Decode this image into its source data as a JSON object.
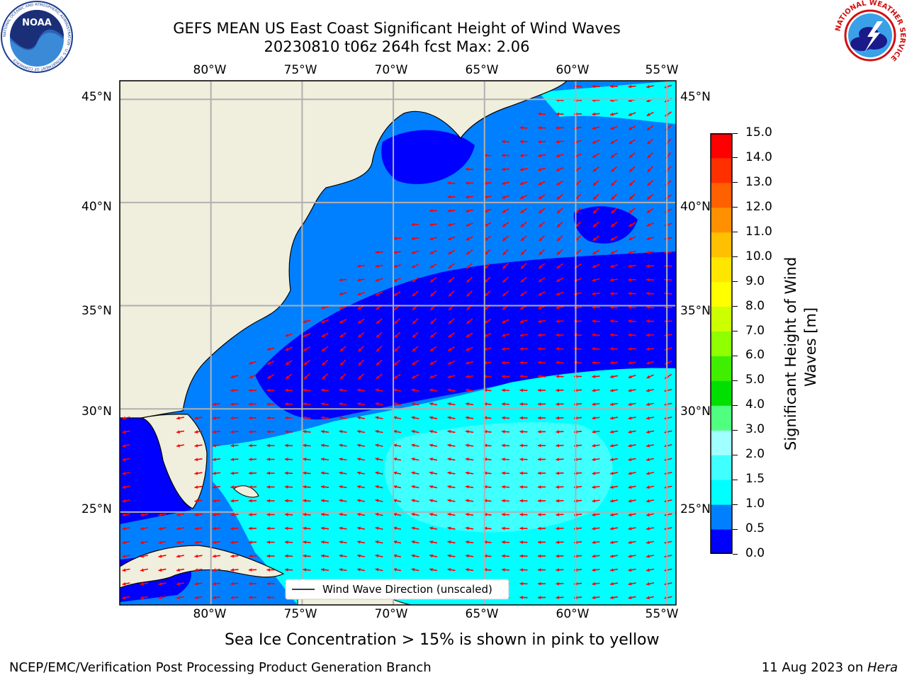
{
  "header": {
    "title_line1": "GEFS MEAN US East Coast Significant Height of Wind Waves",
    "title_line2": "20230810 t06z 264h fcst   Max: 2.06"
  },
  "logos": {
    "noaa": {
      "text": "NOAA",
      "ring_text": "NATIONAL OCEANIC AND ATMOSPHERIC ADMINISTRATION · U.S. DEPARTMENT OF COMMERCE"
    },
    "nws": {
      "ring_text": "NATIONAL WEATHER SERVICE"
    }
  },
  "map": {
    "lon_labels": [
      "80°W",
      "75°W",
      "70°W",
      "65°W",
      "60°W",
      "55°W"
    ],
    "lat_labels": [
      "45°N",
      "40°N",
      "35°N",
      "30°N",
      "25°N"
    ],
    "lon_range": [
      -85,
      -54.5
    ],
    "lat_range": [
      20.5,
      45.9
    ],
    "grid": true,
    "legend": "Wind Wave Direction (unscaled)"
  },
  "colorbar": {
    "title": "Significant Height of Wind Waves [m]",
    "title_line1": "Significant Height of Wind",
    "title_line2": "Waves [m]",
    "ticks": [
      "0.0",
      "0.5",
      "1.0",
      "1.5",
      "2.0",
      "3.0",
      "4.0",
      "5.0",
      "6.0",
      "7.0",
      "8.0",
      "9.0",
      "10.0",
      "11.0",
      "12.0",
      "13.0",
      "14.0",
      "15.0"
    ],
    "colors": [
      "#0000ff",
      "#0080ff",
      "#00ffff",
      "#40ffff",
      "#a0ffff",
      "#50ff80",
      "#00e000",
      "#40ee00",
      "#90ff00",
      "#ccff00",
      "#ffff00",
      "#ffe600",
      "#ffc000",
      "#ff9000",
      "#ff6000",
      "#ff3000",
      "#ff0000"
    ]
  },
  "notes": {
    "ice": "Sea Ice Concentration > 15% is shown in pink to yellow"
  },
  "footer": {
    "left": "NCEP/EMC/Verification Post Processing Product Generation Branch",
    "right_date": "11 Aug 2023 on ",
    "right_host": "Hera"
  }
}
